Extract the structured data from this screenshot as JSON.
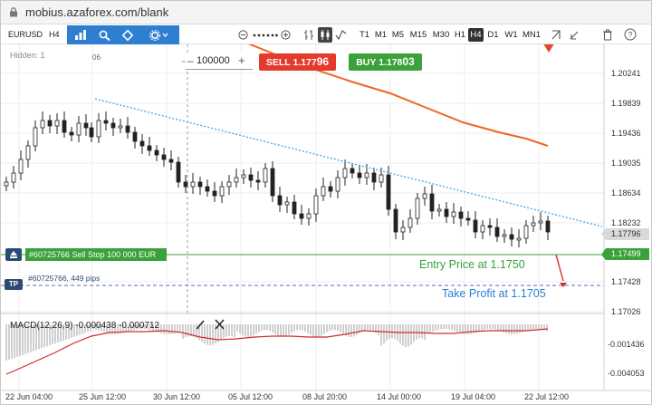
{
  "browser": {
    "url": "mobius.azaforex.com/blank"
  },
  "toolbar": {
    "symbol": "EURUSD",
    "period": "H4",
    "timeframes": [
      "T1",
      "M1",
      "M5",
      "M15",
      "M30",
      "H1",
      "H4",
      "D1",
      "W1",
      "MN1"
    ],
    "active_timeframe": "H4"
  },
  "chart": {
    "hidden_label": "Hidden: 1",
    "period_marker": "06",
    "volume": "100000",
    "sell": {
      "prefix": "SELL 1.177",
      "big": "96"
    },
    "buy": {
      "prefix": "BUY 1.178",
      "big": "03"
    },
    "order_label": "#60725766 Sell Stop 100 000 EUR",
    "tp_tag": "TP",
    "tp_info": "#60725766, 449 pips",
    "entry_annotation": "Entry Price at 1.1750",
    "tp_annotation": "Take Profit at 1.1705",
    "current_price": "1.17796",
    "order_price": "1.17499",
    "price_axis": [
      "1.20241",
      "1.19839",
      "1.19436",
      "1.19035",
      "1.18634",
      "1.18232",
      "1.17428",
      "1.17026"
    ],
    "macd_axis": [
      "-0.001436",
      "-0.004053"
    ],
    "time_axis": [
      "22 Jun 04:00",
      "25 Jun 12:00",
      "30 Jun 12:00",
      "05 Jul 12:00",
      "08 Jul 20:00",
      "14 Jul 00:00",
      "19 Jul 04:00",
      "22 Jul 12:00"
    ],
    "macd": {
      "label": "MACD(12,26,9) -0.000438 -0.000712"
    }
  },
  "colors": {
    "sell": "#e43a2b",
    "buy": "#3aa13b",
    "ma_line": "#f26522",
    "trend_line": "#3aa6e8",
    "tp_line": "#5a6fc0",
    "macd_signal": "#d42a2a"
  },
  "icons": [
    "lock-icon",
    "bar-chart-icon",
    "indicator-icon",
    "draw-icon",
    "settings-icon",
    "zoom-out-icon",
    "zoom-in-icon",
    "candles-icon",
    "line-icon",
    "pencil-icon",
    "close-icon",
    "refresh-icon",
    "trash-icon",
    "help-icon"
  ]
}
